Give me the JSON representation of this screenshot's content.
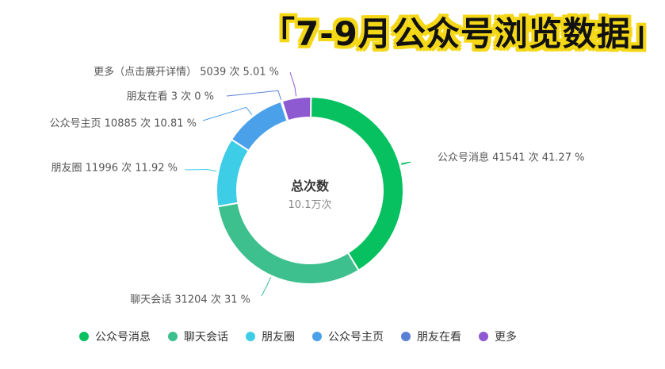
{
  "banner_title": "「7-9月公众号浏览数据」",
  "chart_data": {
    "type": "pie",
    "donut": true,
    "center_label": "总次数",
    "center_value": "10.1万次",
    "unit": "次",
    "slices": [
      {
        "name": "公众号消息",
        "value": 41541,
        "percent": "41.27",
        "color": "#07c160",
        "label": "公众号消息 41541 次 41.27 %"
      },
      {
        "name": "聊天会话",
        "value": 31204,
        "percent": "31",
        "color": "#3dbf8e",
        "label": "聊天会话 31204 次 31 %"
      },
      {
        "name": "朋友圈",
        "value": 11996,
        "percent": "11.92",
        "color": "#3ecde6",
        "label": "朋友圈 11996 次 11.92 %"
      },
      {
        "name": "公众号主页",
        "value": 10885,
        "percent": "10.81",
        "color": "#4ba0ea",
        "label": "公众号主页 10885 次 10.81 %"
      },
      {
        "name": "朋友在看",
        "value": 3,
        "percent": "0",
        "color": "#5b7fd6",
        "label": "朋友在看 3 次 0 %"
      },
      {
        "name": "更多",
        "value": 5039,
        "percent": "5.01",
        "color": "#8e5ad2",
        "label": "更多（点击展开详情） 5039 次 5.01 %"
      }
    ],
    "legend": {
      "position": "bottom",
      "items": [
        "公众号消息",
        "聊天会话",
        "朋友圈",
        "公众号主页",
        "朋友在看",
        "更多"
      ]
    }
  }
}
